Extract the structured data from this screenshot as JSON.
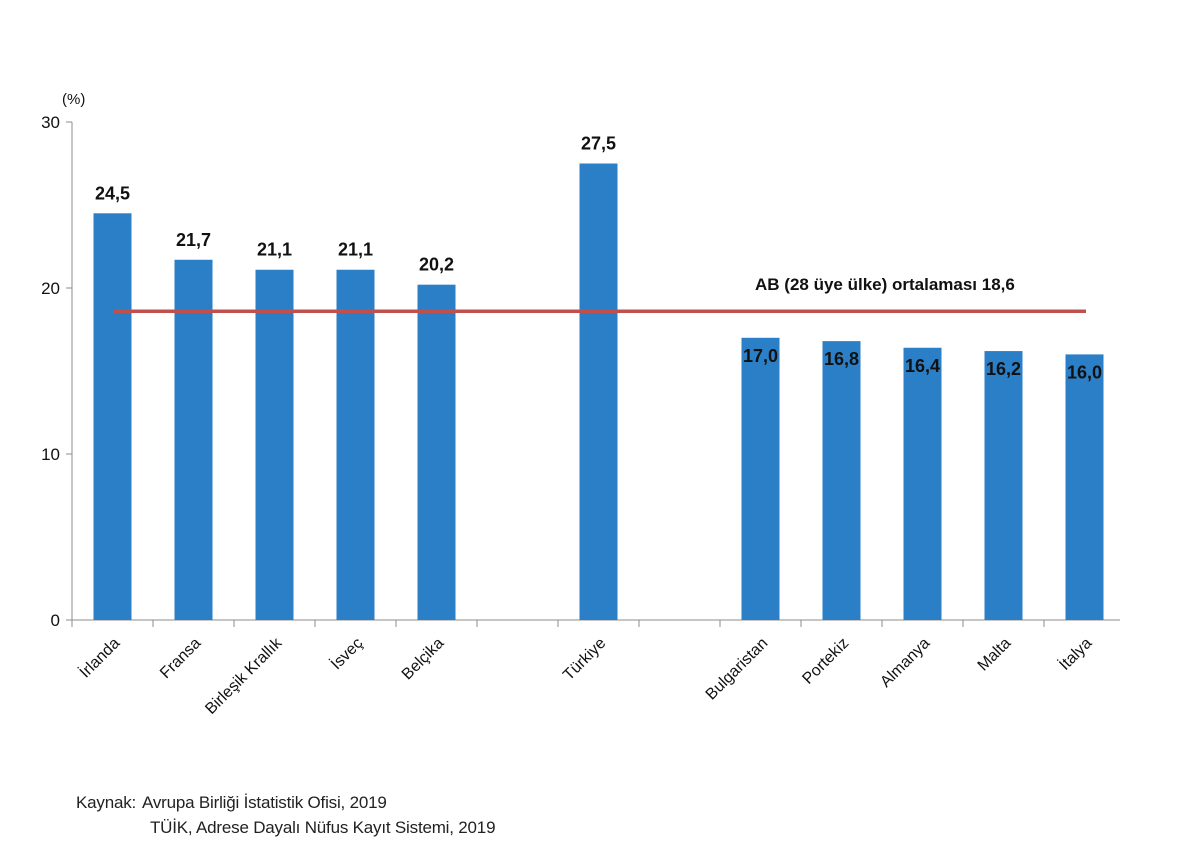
{
  "chart_data": {
    "type": "bar",
    "title": "",
    "unit_label": "(%)",
    "xlabel": "",
    "ylabel": "(%)",
    "ylim": [
      0,
      30
    ],
    "yticks": [
      0,
      10,
      20,
      30
    ],
    "grid": false,
    "categories": [
      "İrlanda",
      "Fransa",
      "Birleşik Krallık",
      "İsveç",
      "Belçika",
      "",
      "Türkiye",
      "",
      "Bulgaristan",
      "Portekiz",
      "Almanya",
      "Malta",
      "İtalya"
    ],
    "values": [
      24.5,
      21.7,
      21.1,
      21.1,
      20.2,
      null,
      27.5,
      null,
      17.0,
      16.8,
      16.4,
      16.2,
      16.0
    ],
    "value_labels": [
      "24,5",
      "21,7",
      "21,1",
      "21,1",
      "20,2",
      "",
      "27,5",
      "",
      "17,0",
      "16,8",
      "16,4",
      "16,2",
      "16,0"
    ],
    "label_inside": [
      false,
      false,
      false,
      false,
      false,
      false,
      false,
      false,
      true,
      true,
      true,
      true,
      true
    ],
    "reference_line": {
      "value": 18.6,
      "label": "AB (28 üye ülke) ortalaması 18,6"
    },
    "colors": {
      "bar": "#2b7fc6",
      "reference_line": "#c0504d",
      "axis": "#8c8c8c",
      "text": "#111111"
    }
  },
  "source": {
    "label": "Kaynak:",
    "lines": [
      "Avrupa  Birliği İstatistik Ofisi, 2019",
      "TÜİK, Adrese Dayalı Nüfus Kayıt  Sistemi, 2019"
    ]
  }
}
